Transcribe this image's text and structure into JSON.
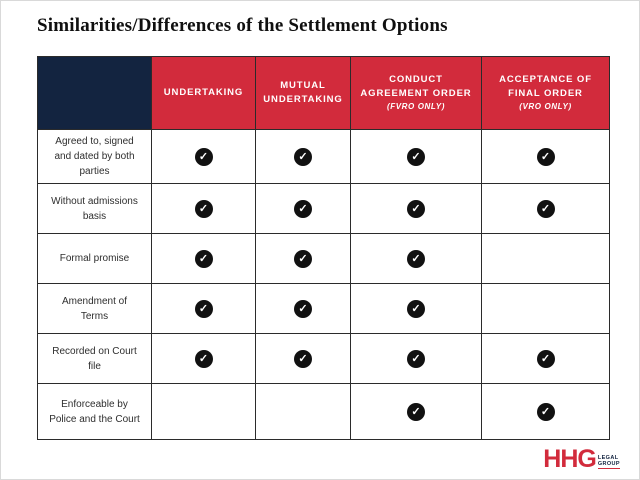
{
  "page": {
    "title": "Similarities/Differences of the Settlement Options"
  },
  "colors": {
    "navy": "#132440",
    "red": "#d22b3c",
    "grid": "#2b2b2b",
    "check": "#111111"
  },
  "icons": {
    "check_glyph": "✓"
  },
  "logo": {
    "main": "HHG",
    "sub_top": "LEGAL",
    "sub_bottom": "GROUP"
  },
  "chart_data": {
    "type": "table",
    "title": "Similarities/Differences of the Settlement Options",
    "columns": [
      {
        "label": "UNDERTAKING",
        "sublabel": ""
      },
      {
        "label": "MUTUAL UNDERTAKING",
        "sublabel": ""
      },
      {
        "label": "CONDUCT AGREEMENT ORDER",
        "sublabel": "(FVRO ONLY)"
      },
      {
        "label": "ACCEPTANCE OF FINAL ORDER",
        "sublabel": "(VRO ONLY)"
      }
    ],
    "rows": [
      {
        "label": "Agreed to, signed and dated by both parties",
        "checks": [
          true,
          true,
          true,
          true
        ]
      },
      {
        "label": "Without admissions basis",
        "checks": [
          true,
          true,
          true,
          true
        ]
      },
      {
        "label": "Formal promise",
        "checks": [
          true,
          true,
          true,
          false
        ]
      },
      {
        "label": "Amendment of Terms",
        "checks": [
          true,
          true,
          true,
          false
        ]
      },
      {
        "label": "Recorded on Court file",
        "checks": [
          true,
          true,
          true,
          true
        ]
      },
      {
        "label": "Enforceable by Police and the Court",
        "checks": [
          false,
          false,
          true,
          true
        ]
      }
    ]
  }
}
